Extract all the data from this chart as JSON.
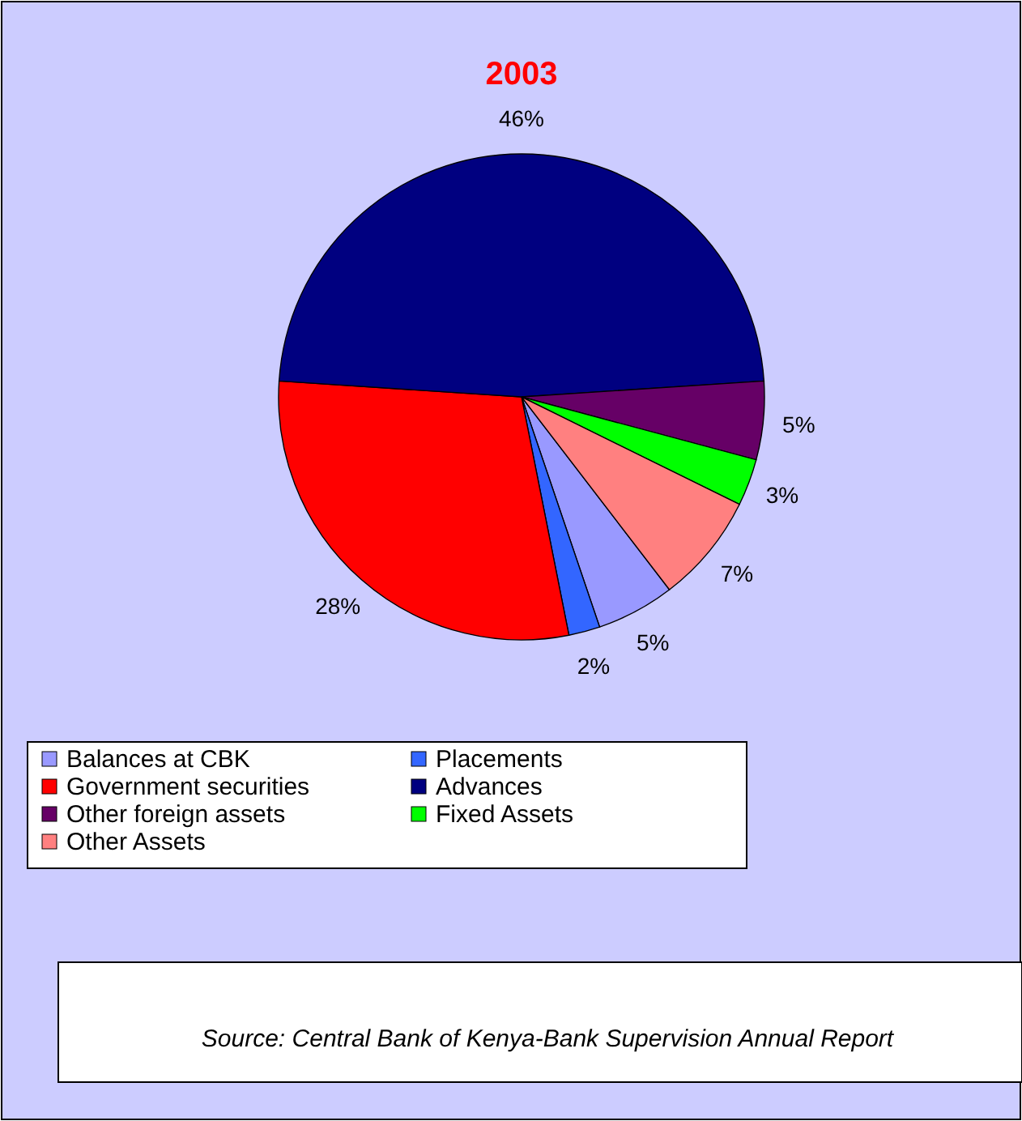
{
  "chart_data": {
    "type": "pie",
    "title": "2003",
    "categories": [
      "Balances at CBK",
      "Placements",
      "Government securities",
      "Advances",
      "Other foreign assets",
      "Fixed Assets",
      "Other Assets"
    ],
    "values": [
      5,
      2,
      28,
      46,
      5,
      3,
      7
    ],
    "value_labels": [
      "5%",
      "2%",
      "28%",
      "46%",
      "5%",
      "3%",
      "7%"
    ],
    "colors": [
      "#9999ff",
      "#3366ff",
      "#ff0000",
      "#000080",
      "#660066",
      "#00ff00",
      "#ff8080"
    ],
    "legend": "bottom",
    "annotations": [
      "Source:  Central Bank of Kenya-Bank Supervision Annual Report"
    ]
  }
}
